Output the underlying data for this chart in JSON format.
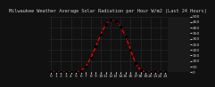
{
  "title": "Milwaukee Weather Average Solar Radiation per Hour W/m2 (Last 24 Hours)",
  "hours": [
    0,
    1,
    2,
    3,
    4,
    5,
    6,
    7,
    8,
    9,
    10,
    11,
    12,
    13,
    14,
    15,
    16,
    17,
    18,
    19,
    20,
    21,
    22,
    23
  ],
  "values": [
    0,
    0,
    0,
    0,
    0,
    2,
    10,
    50,
    130,
    230,
    340,
    430,
    470,
    460,
    410,
    320,
    200,
    80,
    15,
    2,
    0,
    0,
    0,
    0
  ],
  "line_color": "#ff0000",
  "marker_color": "#000000",
  "plot_bg": "#111111",
  "fig_bg": "#111111",
  "grid_color": "#555555",
  "yaxis_bg": "#1a1a1a",
  "title_color": "#cccccc",
  "yaxis_label_color": "#cccccc",
  "xaxis_label_color": "#cccccc",
  "ylim": [
    0,
    500
  ],
  "xlim": [
    -0.5,
    23.5
  ],
  "ylabel_right_ticks": [
    0,
    50,
    100,
    150,
    200,
    250,
    300,
    350,
    400,
    450,
    500
  ],
  "title_fontsize": 3.8,
  "tick_fontsize": 3.2,
  "line_width": 0.9,
  "marker_size": 1.3
}
